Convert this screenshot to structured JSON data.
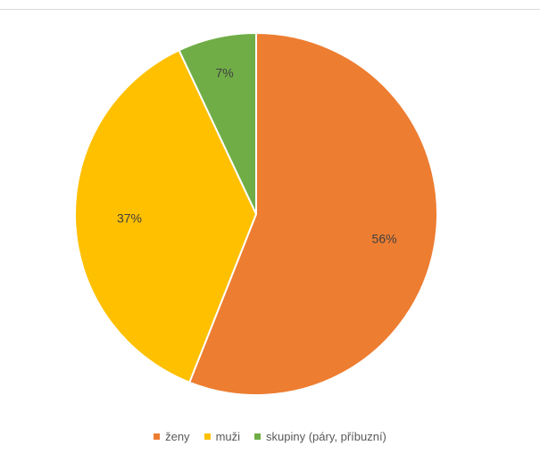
{
  "chart_data": {
    "type": "pie",
    "title": "",
    "slices": [
      {
        "label": "ženy",
        "value": 56,
        "display": "56%",
        "color": "#ED7D31"
      },
      {
        "label": "muži",
        "value": 37,
        "display": "37%",
        "color": "#FFC000"
      },
      {
        "label": "skupiny (páry, příbuzní)",
        "value": 7,
        "display": "7%",
        "color": "#70AD47"
      }
    ],
    "legend_position": "bottom",
    "start_angle": "12 o'clock",
    "direction": "clockwise"
  }
}
